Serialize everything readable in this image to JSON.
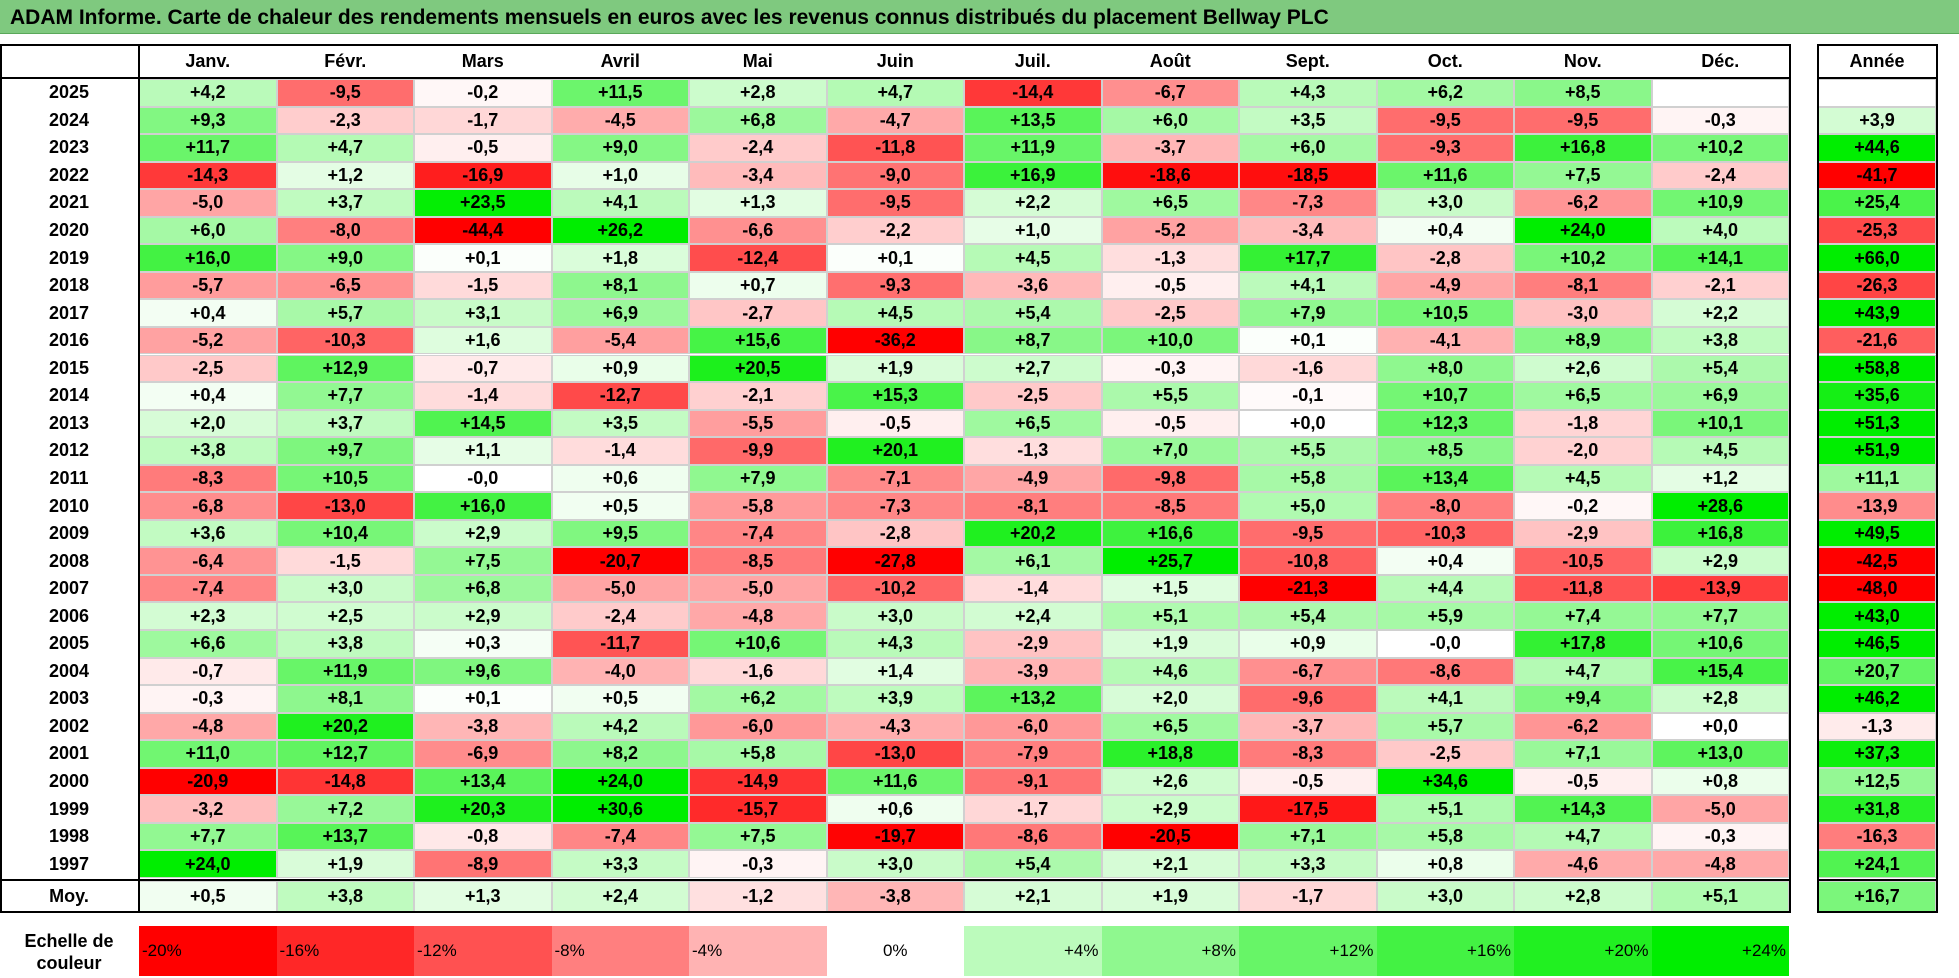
{
  "title": "ADAM Informe. Carte de chaleur des rendements mensuels en euros avec les revenus connus distribués du placement Bellway PLC",
  "chart_data": {
    "type": "heatmap",
    "months": [
      "Janv.",
      "Févr.",
      "Mars",
      "Avril",
      "Mai",
      "Juin",
      "Juil.",
      "Août",
      "Sept.",
      "Oct.",
      "Nov.",
      "Déc."
    ],
    "year_header": "Année",
    "rows": [
      {
        "year": "2025",
        "values": [
          "+4,2",
          "-9,5",
          "-0,2",
          "+11,5",
          "+2,8",
          "+4,7",
          "-14,4",
          "-6,7",
          "+4,3",
          "+6,2",
          "+8,5",
          ""
        ],
        "annual": ""
      },
      {
        "year": "2024",
        "values": [
          "+9,3",
          "-2,3",
          "-1,7",
          "-4,5",
          "+6,8",
          "-4,7",
          "+13,5",
          "+6,0",
          "+3,5",
          "-9,5",
          "-9,5",
          "-0,3"
        ],
        "annual": "+3,9"
      },
      {
        "year": "2023",
        "values": [
          "+11,7",
          "+4,7",
          "-0,5",
          "+9,0",
          "-2,4",
          "-11,8",
          "+11,9",
          "-3,7",
          "+6,0",
          "-9,3",
          "+16,8",
          "+10,2"
        ],
        "annual": "+44,6"
      },
      {
        "year": "2022",
        "values": [
          "-14,3",
          "+1,2",
          "-16,9",
          "+1,0",
          "-3,4",
          "-9,0",
          "+16,9",
          "-18,6",
          "-18,5",
          "+11,6",
          "+7,5",
          "-2,4"
        ],
        "annual": "-41,7"
      },
      {
        "year": "2021",
        "values": [
          "-5,0",
          "+3,7",
          "+23,5",
          "+4,1",
          "+1,3",
          "-9,5",
          "+2,2",
          "+6,5",
          "-7,3",
          "+3,0",
          "-6,2",
          "+10,9"
        ],
        "annual": "+25,4"
      },
      {
        "year": "2020",
        "values": [
          "+6,0",
          "-8,0",
          "-44,4",
          "+26,2",
          "-6,6",
          "-2,2",
          "+1,0",
          "-5,2",
          "-3,4",
          "+0,4",
          "+24,0",
          "+4,0"
        ],
        "annual": "-25,3"
      },
      {
        "year": "2019",
        "values": [
          "+16,0",
          "+9,0",
          "+0,1",
          "+1,8",
          "-12,4",
          "+0,1",
          "+4,5",
          "-1,3",
          "+17,7",
          "-2,8",
          "+10,2",
          "+14,1"
        ],
        "annual": "+66,0"
      },
      {
        "year": "2018",
        "values": [
          "-5,7",
          "-6,5",
          "-1,5",
          "+8,1",
          "+0,7",
          "-9,3",
          "-3,6",
          "-0,5",
          "+4,1",
          "-4,9",
          "-8,1",
          "-2,1"
        ],
        "annual": "-26,3"
      },
      {
        "year": "2017",
        "values": [
          "+0,4",
          "+5,7",
          "+3,1",
          "+6,9",
          "-2,7",
          "+4,5",
          "+5,4",
          "-2,5",
          "+7,9",
          "+10,5",
          "-3,0",
          "+2,2"
        ],
        "annual": "+43,9"
      },
      {
        "year": "2016",
        "values": [
          "-5,2",
          "-10,3",
          "+1,6",
          "-5,4",
          "+15,6",
          "-36,2",
          "+8,7",
          "+10,0",
          "+0,1",
          "-4,1",
          "+8,9",
          "+3,8"
        ],
        "annual": "-21,6"
      },
      {
        "year": "2015",
        "values": [
          "-2,5",
          "+12,9",
          "-0,7",
          "+0,9",
          "+20,5",
          "+1,9",
          "+2,7",
          "-0,3",
          "-1,6",
          "+8,0",
          "+2,6",
          "+5,4"
        ],
        "annual": "+58,8"
      },
      {
        "year": "2014",
        "values": [
          "+0,4",
          "+7,7",
          "-1,4",
          "-12,7",
          "-2,1",
          "+15,3",
          "-2,5",
          "+5,5",
          "-0,1",
          "+10,7",
          "+6,5",
          "+6,9"
        ],
        "annual": "+35,6"
      },
      {
        "year": "2013",
        "values": [
          "+2,0",
          "+3,7",
          "+14,5",
          "+3,5",
          "-5,5",
          "-0,5",
          "+6,5",
          "-0,5",
          "+0,0",
          "+12,3",
          "-1,8",
          "+10,1"
        ],
        "annual": "+51,3"
      },
      {
        "year": "2012",
        "values": [
          "+3,8",
          "+9,7",
          "+1,1",
          "-1,4",
          "-9,9",
          "+20,1",
          "-1,3",
          "+7,0",
          "+5,5",
          "+8,5",
          "-2,0",
          "+4,5"
        ],
        "annual": "+51,9"
      },
      {
        "year": "2011",
        "values": [
          "-8,3",
          "+10,5",
          "-0,0",
          "+0,6",
          "+7,9",
          "-7,1",
          "-4,9",
          "-9,8",
          "+5,8",
          "+13,4",
          "+4,5",
          "+1,2"
        ],
        "annual": "+11,1"
      },
      {
        "year": "2010",
        "values": [
          "-6,8",
          "-13,0",
          "+16,0",
          "+0,5",
          "-5,8",
          "-7,3",
          "-8,1",
          "-8,5",
          "+5,0",
          "-8,0",
          "-0,2",
          "+28,6"
        ],
        "annual": "-13,9"
      },
      {
        "year": "2009",
        "values": [
          "+3,6",
          "+10,4",
          "+2,9",
          "+9,5",
          "-7,4",
          "-2,8",
          "+20,2",
          "+16,6",
          "-9,5",
          "-10,3",
          "-2,9",
          "+16,8"
        ],
        "annual": "+49,5"
      },
      {
        "year": "2008",
        "values": [
          "-6,4",
          "-1,5",
          "+7,5",
          "-20,7",
          "-8,5",
          "-27,8",
          "+6,1",
          "+25,7",
          "-10,8",
          "+0,4",
          "-10,5",
          "+2,9"
        ],
        "annual": "-42,5"
      },
      {
        "year": "2007",
        "values": [
          "-7,4",
          "+3,0",
          "+6,8",
          "-5,0",
          "-5,0",
          "-10,2",
          "-1,4",
          "+1,5",
          "-21,3",
          "+4,4",
          "-11,8",
          "-13,9"
        ],
        "annual": "-48,0"
      },
      {
        "year": "2006",
        "values": [
          "+2,3",
          "+2,5",
          "+2,9",
          "-2,4",
          "-4,8",
          "+3,0",
          "+2,4",
          "+5,1",
          "+5,4",
          "+5,9",
          "+7,4",
          "+7,7"
        ],
        "annual": "+43,0"
      },
      {
        "year": "2005",
        "values": [
          "+6,6",
          "+3,8",
          "+0,3",
          "-11,7",
          "+10,6",
          "+4,3",
          "-2,9",
          "+1,9",
          "+0,9",
          "-0,0",
          "+17,8",
          "+10,6"
        ],
        "annual": "+46,5"
      },
      {
        "year": "2004",
        "values": [
          "-0,7",
          "+11,9",
          "+9,6",
          "-4,0",
          "-1,6",
          "+1,4",
          "-3,9",
          "+4,6",
          "-6,7",
          "-8,6",
          "+4,7",
          "+15,4"
        ],
        "annual": "+20,7"
      },
      {
        "year": "2003",
        "values": [
          "-0,3",
          "+8,1",
          "+0,1",
          "+0,5",
          "+6,2",
          "+3,9",
          "+13,2",
          "+2,0",
          "-9,6",
          "+4,1",
          "+9,4",
          "+2,8"
        ],
        "annual": "+46,2"
      },
      {
        "year": "2002",
        "values": [
          "-4,8",
          "+20,2",
          "-3,8",
          "+4,2",
          "-6,0",
          "-4,3",
          "-6,0",
          "+6,5",
          "-3,7",
          "+5,7",
          "-6,2",
          "+0,0"
        ],
        "annual": "-1,3"
      },
      {
        "year": "2001",
        "values": [
          "+11,0",
          "+12,7",
          "-6,9",
          "+8,2",
          "+5,8",
          "-13,0",
          "-7,9",
          "+18,8",
          "-8,3",
          "-2,5",
          "+7,1",
          "+13,0"
        ],
        "annual": "+37,3"
      },
      {
        "year": "2000",
        "values": [
          "-20,9",
          "-14,8",
          "+13,4",
          "+24,0",
          "-14,9",
          "+11,6",
          "-9,1",
          "+2,6",
          "-0,5",
          "+34,6",
          "-0,5",
          "+0,8"
        ],
        "annual": "+12,5"
      },
      {
        "year": "1999",
        "values": [
          "-3,2",
          "+7,2",
          "+20,3",
          "+30,6",
          "-15,7",
          "+0,6",
          "-1,7",
          "+2,9",
          "-17,5",
          "+5,1",
          "+14,3",
          "-5,0"
        ],
        "annual": "+31,8"
      },
      {
        "year": "1998",
        "values": [
          "+7,7",
          "+13,7",
          "-0,8",
          "-7,4",
          "+7,5",
          "-19,7",
          "-8,6",
          "-20,5",
          "+7,1",
          "+5,8",
          "+4,7",
          "-0,3"
        ],
        "annual": "-16,3"
      },
      {
        "year": "1997",
        "values": [
          "+24,0",
          "+1,9",
          "-8,9",
          "+3,3",
          "-0,3",
          "+3,0",
          "+5,4",
          "+2,1",
          "+3,3",
          "+0,8",
          "-4,6",
          "-4,8"
        ],
        "annual": "+24,1"
      }
    ],
    "average": {
      "label": "Moy.",
      "values": [
        "+0,5",
        "+3,8",
        "+1,3",
        "+2,4",
        "-1,2",
        "-3,8",
        "+2,1",
        "+1,9",
        "-1,7",
        "+3,0",
        "+2,8",
        "+5,1"
      ],
      "annual": "+16,7"
    },
    "legend": {
      "label": "Echelle de couleur",
      "stops": [
        "-20%",
        "-16%",
        "-12%",
        "-8%",
        "-4%",
        "0%",
        "+4%",
        "+8%",
        "+12%",
        "+16%",
        "+20%",
        "+24%"
      ],
      "stop_values": [
        -20,
        -16,
        -12,
        -8,
        -4,
        0,
        4,
        8,
        12,
        16,
        20,
        24
      ]
    },
    "colors": {
      "negative": "#ff0000",
      "zero": "#ffffff",
      "positive": "#00ee00"
    },
    "color_scale_monthly": {
      "min": -20,
      "max": 24
    },
    "color_scale_annual": {
      "min": -40,
      "max": 40
    }
  }
}
